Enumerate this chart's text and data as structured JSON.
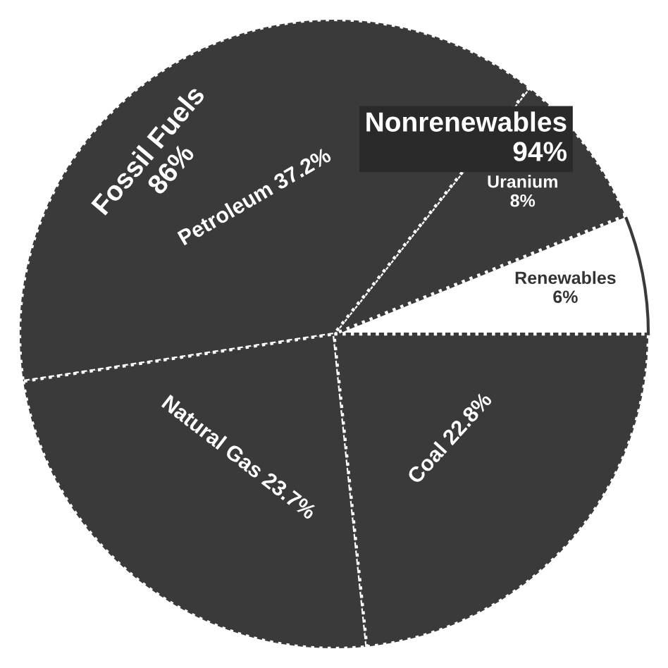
{
  "chart_data": {
    "type": "pie",
    "categories": [
      "Renewables",
      "Uranium",
      "Petroleum",
      "Natural Gas",
      "Coal"
    ],
    "values": [
      6,
      8,
      37.2,
      23.7,
      22.8
    ],
    "value_labels": [
      "6%",
      "8%",
      "37.2%",
      "23.7%",
      "22.8%"
    ],
    "colors": [
      "#ffffff",
      "#3a3a3a",
      "#3a3a3a",
      "#3a3a3a",
      "#3a3a3a"
    ],
    "annotations": [
      "Nonrenewables\n94%",
      "Fossil Fuels\n86%"
    ],
    "legend": false
  }
}
